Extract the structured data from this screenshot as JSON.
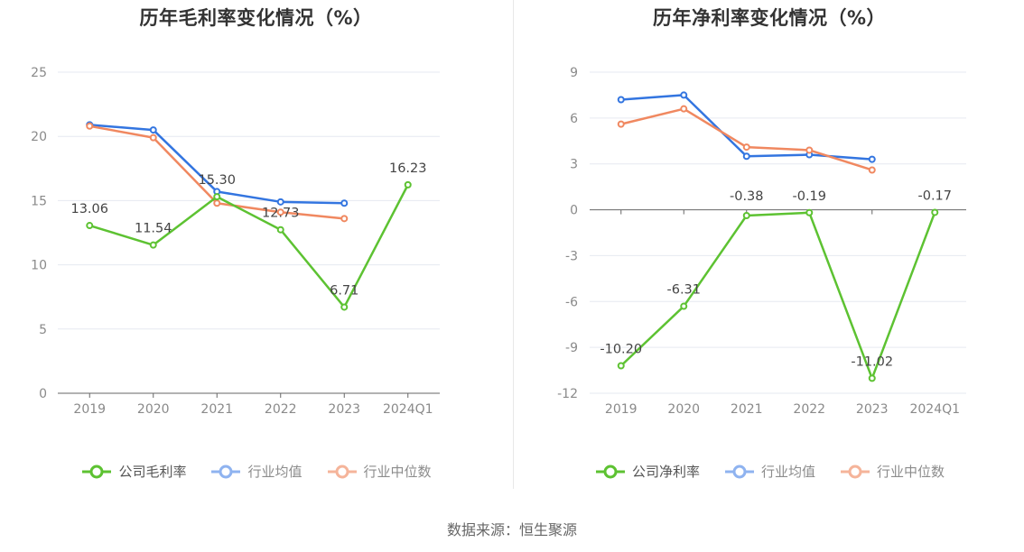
{
  "colors": {
    "company": "#5dc232",
    "avg": "#3375e0",
    "median": "#f08860",
    "grid": "#e6e9f0",
    "axis": "#666666"
  },
  "source": "数据来源：恒生聚源",
  "chart_data": [
    {
      "type": "line",
      "title": "历年毛利率变化情况（%）",
      "categories": [
        "2019",
        "2020",
        "2021",
        "2022",
        "2023",
        "2024Q1"
      ],
      "ylim": [
        0,
        25
      ],
      "yticks": [
        0,
        5,
        10,
        15,
        20,
        25
      ],
      "grid": true,
      "legend_position": "bottom",
      "series": [
        {
          "name": "公司毛利率",
          "color": "#5dc232",
          "values": [
            13.06,
            11.54,
            15.3,
            12.73,
            6.71,
            16.23
          ],
          "labels": [
            "13.06",
            "11.54",
            "15.30",
            "12.73",
            "6.71",
            "16.23"
          ]
        },
        {
          "name": "行业均值",
          "color": "#3375e0",
          "values": [
            20.9,
            20.5,
            15.7,
            14.9,
            14.8,
            null
          ]
        },
        {
          "name": "行业中位数",
          "color": "#f08860",
          "values": [
            20.8,
            19.9,
            14.8,
            14.1,
            13.6,
            null
          ]
        }
      ]
    },
    {
      "type": "line",
      "title": "历年净利率变化情况（%）",
      "categories": [
        "2019",
        "2020",
        "2021",
        "2022",
        "2023",
        "2024Q1"
      ],
      "ylim": [
        -12,
        9
      ],
      "yticks": [
        -12,
        -9,
        -6,
        -3,
        0,
        3,
        6,
        9
      ],
      "grid": true,
      "legend_position": "bottom",
      "series": [
        {
          "name": "公司净利率",
          "color": "#5dc232",
          "values": [
            -10.2,
            -6.31,
            -0.38,
            -0.19,
            -11.02,
            -0.17
          ],
          "labels": [
            "-10.20",
            "-6.31",
            "-0.38",
            "-0.19",
            "-11.02",
            "-0.17"
          ]
        },
        {
          "name": "行业均值",
          "color": "#3375e0",
          "values": [
            7.2,
            7.5,
            3.5,
            3.6,
            3.3,
            null
          ]
        },
        {
          "name": "行业中位数",
          "color": "#f08860",
          "values": [
            5.6,
            6.6,
            4.1,
            3.9,
            2.6,
            null
          ]
        }
      ]
    }
  ]
}
